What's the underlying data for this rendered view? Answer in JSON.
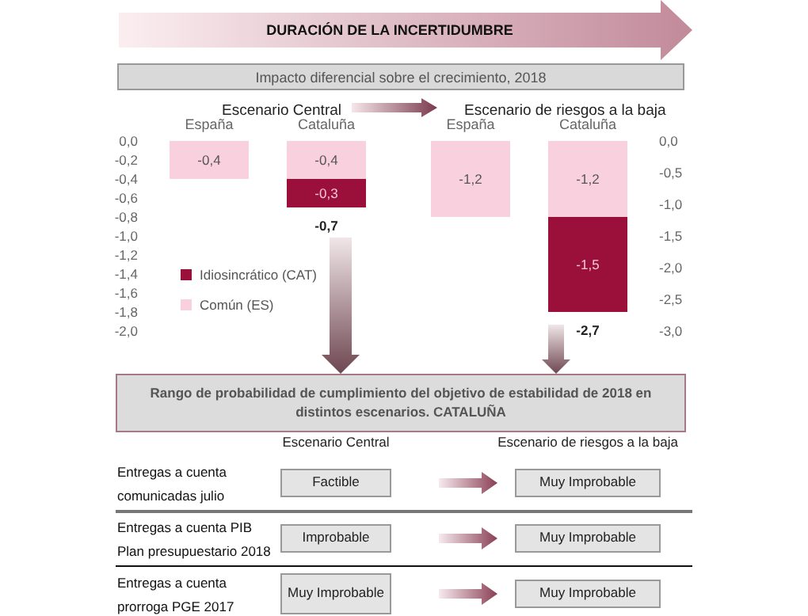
{
  "chart_data": [
    {
      "type": "other",
      "title": "DURACIÓN DE LA INCERTIDUMBRE",
      "subtitle": "Impacto diferencial sobre el crecimiento, 2018"
    },
    {
      "type": "bar",
      "title": "Escenario Central",
      "categories": [
        "España",
        "Cataluña"
      ],
      "stacked": true,
      "ylim": [
        -2,
        0
      ],
      "yticks": [
        {
          "value": 0,
          "label": "0,0"
        },
        {
          "value": -0.2,
          "label": "-0,2"
        },
        {
          "value": -0.4,
          "label": "-0,4"
        },
        {
          "value": -0.6,
          "label": "-0,6"
        },
        {
          "value": -0.8,
          "label": "-0,8"
        },
        {
          "value": -1,
          "label": "-1,0"
        },
        {
          "value": -1.2,
          "label": "-1,2"
        },
        {
          "value": -1.4,
          "label": "-1,4"
        },
        {
          "value": -1.6,
          "label": "-1,6"
        },
        {
          "value": -1.8,
          "label": "-1,8"
        },
        {
          "value": -2,
          "label": "-2,0"
        }
      ],
      "series": [
        {
          "name": "Común (ES)",
          "color": "#f9d0dd",
          "values": [
            -0.4,
            -0.4
          ],
          "value_labels": [
            "-0,4",
            "-0,4"
          ]
        },
        {
          "name": "Idiosincrático (CAT)",
          "color": "#9b0f3b",
          "values": [
            null,
            -0.3
          ],
          "value_labels": [
            null,
            "-0,3"
          ]
        }
      ],
      "totals": [
        null,
        "-0,7"
      ],
      "legend": "bottom left",
      "grid": false
    },
    {
      "type": "bar",
      "title": "Escenario de riesgos a la baja",
      "categories": [
        "España",
        "Cataluña"
      ],
      "stacked": true,
      "ylim": [
        -3,
        0
      ],
      "yticks": [
        {
          "value": 0,
          "label": "0,0"
        },
        {
          "value": -0.5,
          "label": "-0,5"
        },
        {
          "value": -1,
          "label": "-1,0"
        },
        {
          "value": -1.5,
          "label": "-1,5"
        },
        {
          "value": -2,
          "label": "-2,0"
        },
        {
          "value": -2.5,
          "label": "-2,5"
        },
        {
          "value": -3,
          "label": "-3,0"
        }
      ],
      "series": [
        {
          "color": "#f9d0dd",
          "values": [
            -1.2,
            -1.2
          ],
          "value_labels": [
            "-1,2",
            "-1,2"
          ]
        },
        {
          "color": "#9b0f3b",
          "values": [
            null,
            -1.5
          ],
          "value_labels": [
            null,
            "-1,5"
          ]
        }
      ],
      "totals": [
        null,
        "-2,7"
      ],
      "grid": false
    },
    {
      "type": "other",
      "title": "Rango de probabilidad  de cumplimiento del objetivo de estabilidad  de 2018 en distintos escenarios.  CATALUÑA",
      "annotations": [
        "Escenario Central",
        "Escenario de riesgos a la baja",
        "Entregas a cuenta comunicadas julio",
        "Factible",
        "Muy Improbable",
        "Entregas a cuenta PIB Plan presupuestario 2018",
        "Improbable",
        "Muy Improbable",
        "Entregas a cuenta prorroga PGE 2017",
        "Muy Improbable",
        "Muy Improbable"
      ]
    }
  ]
}
